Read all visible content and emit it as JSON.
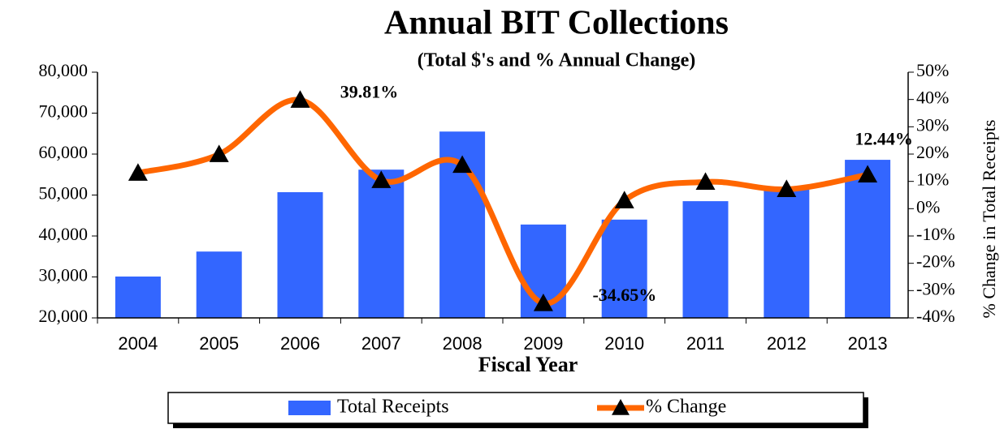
{
  "chart_data": {
    "type": "bar-line",
    "title": "Annual BIT Collections",
    "subtitle": "(Total $'s and % Annual Change)",
    "x_label": "Fiscal Year",
    "y2_label": "% Change in Total Receipts",
    "categories": [
      "2004",
      "2005",
      "2006",
      "2007",
      "2008",
      "2009",
      "2010",
      "2011",
      "2012",
      "2013"
    ],
    "series": [
      {
        "name": "Total Receipts",
        "type": "bar",
        "color": "#3366ff",
        "values": [
          30100,
          36200,
          50700,
          56200,
          65500,
          42800,
          44000,
          48500,
          51500,
          58600
        ]
      },
      {
        "name": "% Change",
        "type": "line",
        "axis": "y2",
        "color": "#ff6600",
        "marker_color": "#000000",
        "values": [
          13.1,
          19.9,
          39.81,
          10.4,
          16.0,
          -34.65,
          3.0,
          9.8,
          7.1,
          12.44
        ],
        "value_labels": [
          null,
          null,
          "39.81%",
          null,
          null,
          "-34.65%",
          null,
          null,
          null,
          "12.44%"
        ]
      }
    ],
    "ylim": [
      20000,
      80000
    ],
    "yticks": [
      {
        "value": 20000,
        "label": "20,000"
      },
      {
        "value": 30000,
        "label": "30,000"
      },
      {
        "value": 40000,
        "label": "40,000"
      },
      {
        "value": 50000,
        "label": "50,000"
      },
      {
        "value": 60000,
        "label": "60,000"
      },
      {
        "value": 70000,
        "label": "70,000"
      },
      {
        "value": 80000,
        "label": "80,000"
      }
    ],
    "y2lim": [
      -40,
      50
    ],
    "y2ticks": [
      {
        "value": -40,
        "label": "-40%"
      },
      {
        "value": -30,
        "label": "-30%"
      },
      {
        "value": -20,
        "label": "-20%"
      },
      {
        "value": -10,
        "label": "-10%"
      },
      {
        "value": 0,
        "label": "0%"
      },
      {
        "value": 10,
        "label": "10%"
      },
      {
        "value": 20,
        "label": "20%"
      },
      {
        "value": 30,
        "label": "30%"
      },
      {
        "value": 40,
        "label": "40%"
      },
      {
        "value": 50,
        "label": "50%"
      }
    ],
    "grid": false,
    "legend": "bottom"
  }
}
